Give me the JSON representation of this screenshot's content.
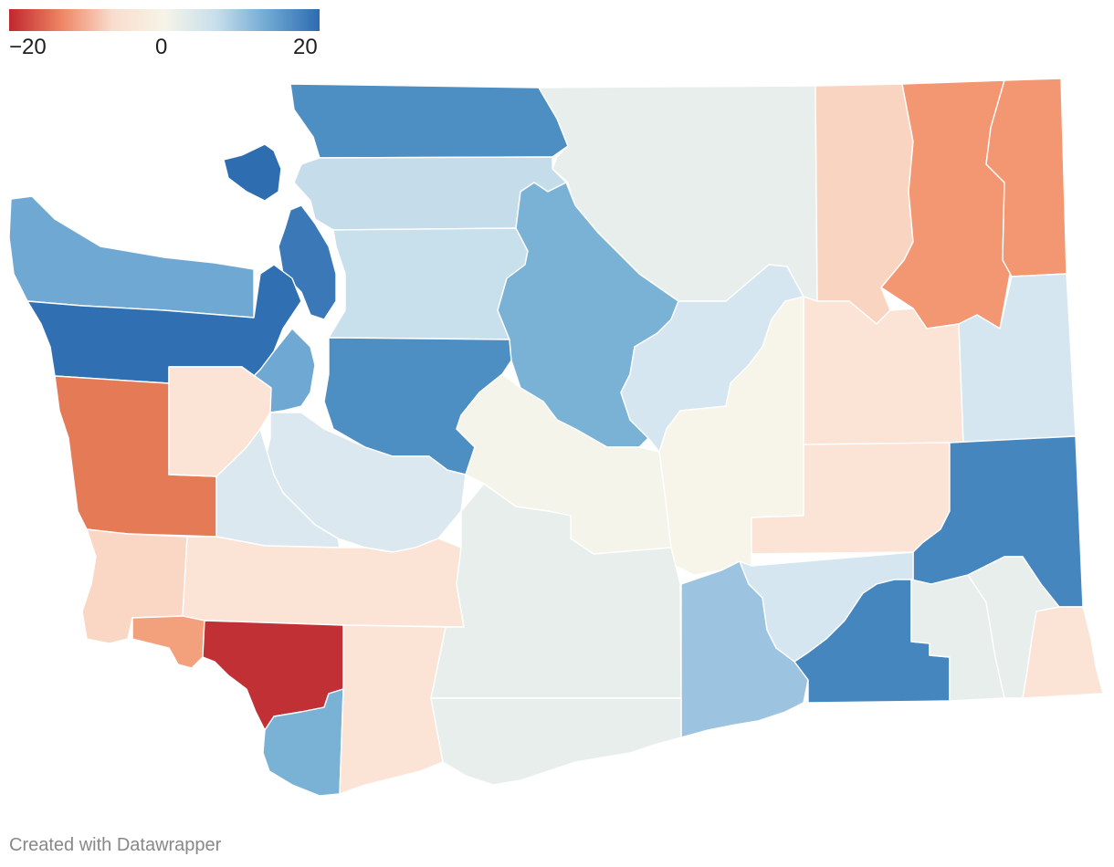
{
  "legend": {
    "min_label": "−20",
    "mid_label": "0",
    "max_label": "20",
    "min_value": -20,
    "max_value": 20,
    "color_stops": [
      "#c0272f",
      "#ee8463",
      "#f9ddcc",
      "#f6f4e8",
      "#c7dfec",
      "#6fa8d2",
      "#2d6bb0"
    ]
  },
  "credit": "Created with Datawrapper",
  "map": {
    "regions": [
      {
        "key": "whatcom",
        "color": "#4d8ec3"
      },
      {
        "key": "okanogan",
        "color": "#e8eeec"
      },
      {
        "key": "ferry",
        "color": "#f9d5c1"
      },
      {
        "key": "stevens",
        "color": "#f39672"
      },
      {
        "key": "pend-oreille",
        "color": "#f39672"
      },
      {
        "key": "san-juan",
        "color": "#2e6db0"
      },
      {
        "key": "skagit",
        "color": "#c5dcea"
      },
      {
        "key": "snohomish",
        "color": "#c8dfec"
      },
      {
        "key": "island",
        "color": "#3a78b8"
      },
      {
        "key": "clallam",
        "color": "#6fa9d3"
      },
      {
        "key": "jefferson",
        "color": "#3070b2"
      },
      {
        "key": "kitsap",
        "color": "#6fa9d3"
      },
      {
        "key": "king",
        "color": "#4d8ec3"
      },
      {
        "key": "chelan",
        "color": "#7ab2d6"
      },
      {
        "key": "douglas",
        "color": "#d5e6f0"
      },
      {
        "key": "lincoln",
        "color": "#fbe4d6"
      },
      {
        "key": "spokane",
        "color": "#d5e6f0"
      },
      {
        "key": "grays-harbor",
        "color": "#e47a56"
      },
      {
        "key": "mason",
        "color": "#fbe4d6"
      },
      {
        "key": "kittitas",
        "color": "#f5f4ea"
      },
      {
        "key": "grant",
        "color": "#f7f5e9"
      },
      {
        "key": "adams",
        "color": "#fbe4d6"
      },
      {
        "key": "whitman",
        "color": "#4686bf"
      },
      {
        "key": "pierce",
        "color": "#dce8ef"
      },
      {
        "key": "thurston",
        "color": "#dce8ef"
      },
      {
        "key": "pacific",
        "color": "#f9d7c4"
      },
      {
        "key": "lewis",
        "color": "#fbe4d6"
      },
      {
        "key": "yakima",
        "color": "#e8eeec"
      },
      {
        "key": "benton",
        "color": "#9cc4e0"
      },
      {
        "key": "franklin",
        "color": "#d5e6f0"
      },
      {
        "key": "walla-walla",
        "color": "#4686bf"
      },
      {
        "key": "columbia",
        "color": "#e8eeec"
      },
      {
        "key": "garfield",
        "color": "#e8eeec"
      },
      {
        "key": "asotin",
        "color": "#fbe4d6"
      },
      {
        "key": "wahkiakum",
        "color": "#f3a07c"
      },
      {
        "key": "cowlitz",
        "color": "#c03035"
      },
      {
        "key": "clark",
        "color": "#7ab2d6"
      },
      {
        "key": "skamania",
        "color": "#fbe4d6"
      },
      {
        "key": "klickitat",
        "color": "#e8eeec"
      }
    ]
  }
}
